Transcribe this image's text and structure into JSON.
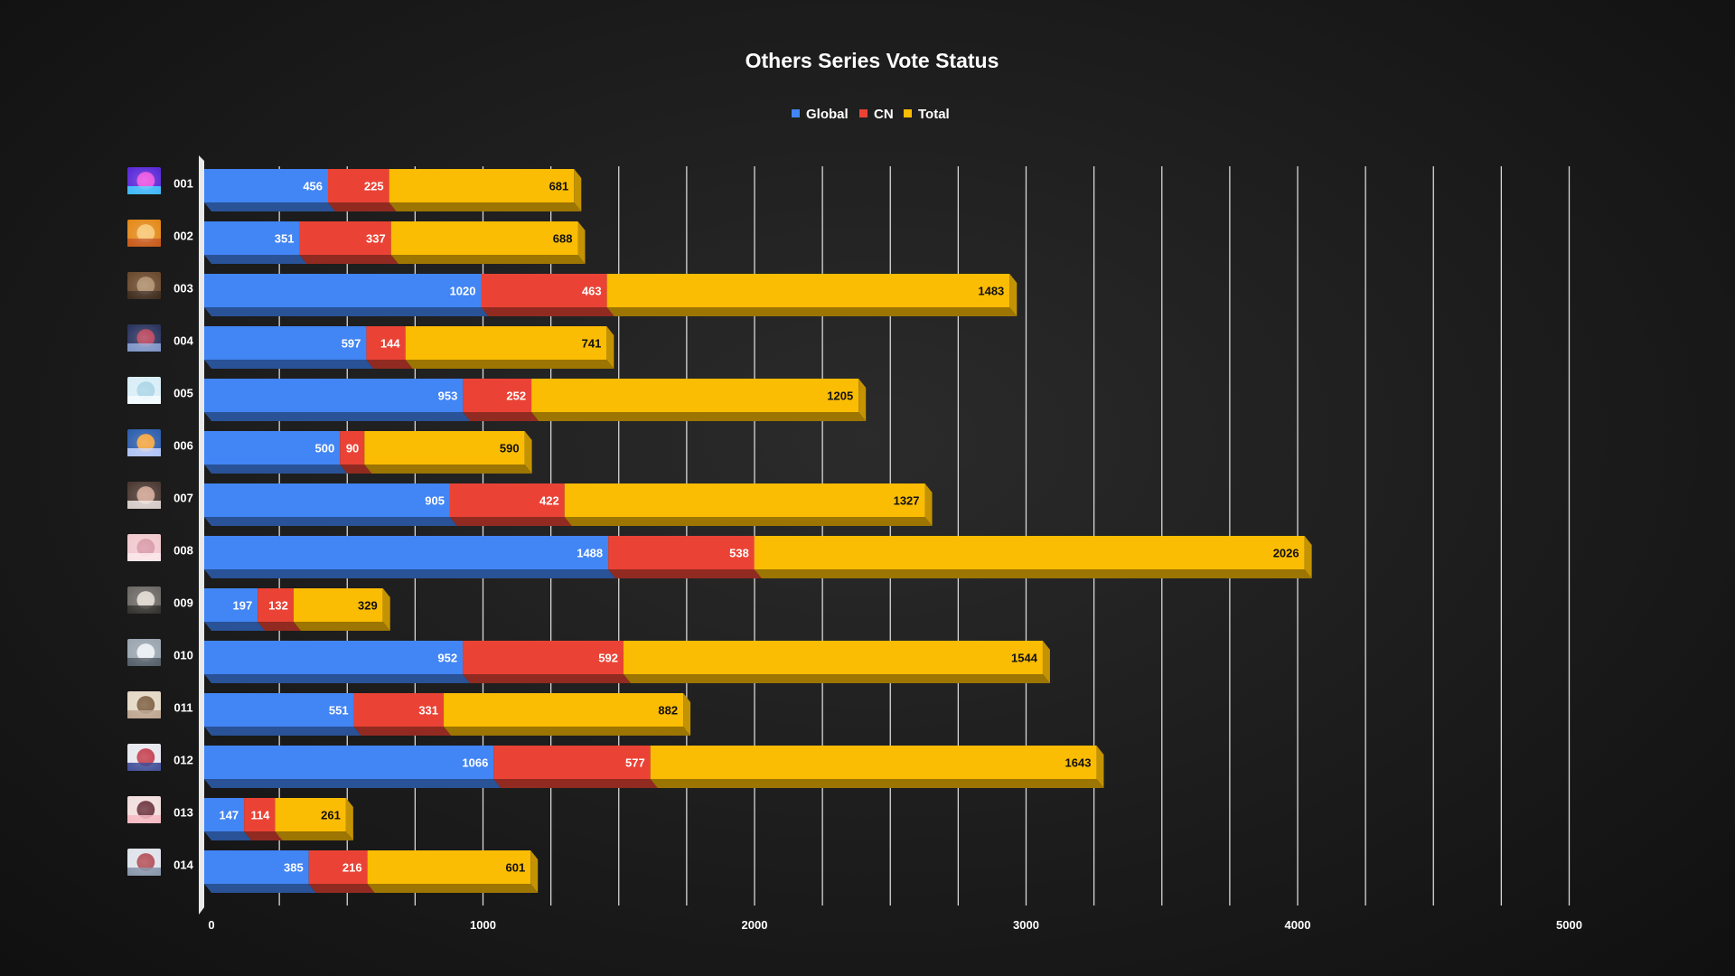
{
  "chart_data": {
    "type": "bar",
    "orientation": "horizontal",
    "stacked": true,
    "title": "Others Series Vote Status",
    "legend": {
      "position": "top"
    },
    "xlim": [
      0,
      5000
    ],
    "x_ticks": [
      "0",
      "1000",
      "2000",
      "3000",
      "4000",
      "5000"
    ],
    "grid": true,
    "categories": [
      "001",
      "002",
      "003",
      "004",
      "005",
      "006",
      "007",
      "008",
      "009",
      "010",
      "011",
      "012",
      "013",
      "014"
    ],
    "series": [
      {
        "name": "Global",
        "color": "#4285f4",
        "values": [
          456,
          351,
          1020,
          597,
          953,
          500,
          905,
          1488,
          197,
          952,
          551,
          1066,
          147,
          385
        ]
      },
      {
        "name": "CN",
        "color": "#ea4335",
        "values": [
          225,
          337,
          463,
          144,
          252,
          90,
          422,
          538,
          132,
          592,
          331,
          577,
          114,
          216
        ]
      },
      {
        "name": "Total",
        "color": "#fbbc04",
        "values": [
          681,
          688,
          1483,
          741,
          1205,
          590,
          1327,
          2026,
          329,
          1544,
          882,
          1643,
          261,
          601
        ]
      }
    ],
    "thumbnail_icons": [
      "aurora-thumbnail-icon",
      "cartoon-thumbnail-icon",
      "room-thumbnail-icon",
      "robot-thumbnail-icon",
      "snow-thumbnail-icon",
      "figure-thumbnail-icon",
      "ship-thumbnail-icon",
      "blossom-thumbnail-icon",
      "landscape-thumbnail-icon",
      "winter-thumbnail-icon",
      "pattern-thumbnail-icon",
      "poster-thumbnail-icon",
      "character-thumbnail-icon",
      "scene-thumbnail-icon"
    ]
  }
}
